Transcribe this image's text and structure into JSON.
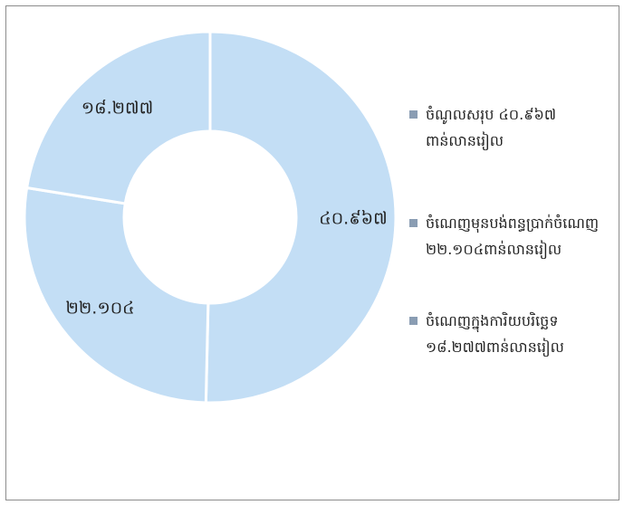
{
  "chart_data": {
    "type": "donut",
    "categories": [
      "ចំណូលសរុប ៤០.៩៦៧ ពាន់លានរៀល",
      "ចំណេញមុនបង់ពន្ធប្រាក់ចំណេញ ២២.១០៤ពាន់លានរៀល",
      "ចំណេញក្នុងការិយបរិច្ឆេទ ១៨.២៧៧ពាន់លានរៀល"
    ],
    "values": [
      40.967,
      22.104,
      18.277
    ],
    "value_labels": [
      "៤០.៩៦៧",
      "២២.១០៤",
      "១៨.២៧៧"
    ],
    "color": "#c3def5",
    "legend_marker_color": "#8a9db3"
  }
}
